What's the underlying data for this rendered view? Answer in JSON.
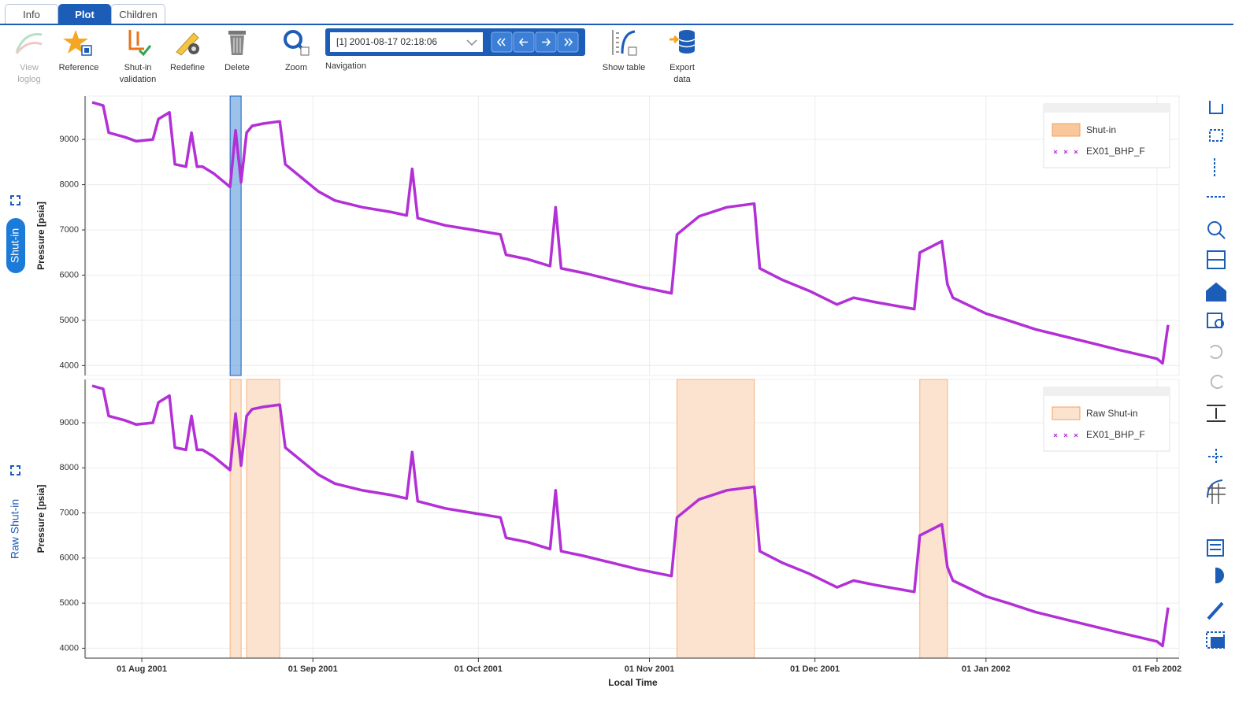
{
  "tabs": [
    "Info",
    "Plot",
    "Children"
  ],
  "toolbar": [
    "View loglog",
    "Reference",
    "Shut-in validation",
    "Redefine",
    "Delete",
    "Zoom"
  ],
  "navigation": {
    "label": "Navigation",
    "current": "[1] 2001-08-17 02:18:06"
  },
  "toolbar_right": [
    "Show table",
    "Export data"
  ],
  "chart_data": [
    {
      "type": "line",
      "title": "Shut-in",
      "y_label": "Pressure [psia]",
      "xlim": [
        "2001-07-22",
        "2002-02-05"
      ],
      "ylim": [
        3780,
        9960
      ],
      "yticks": [
        4000,
        5000,
        6000,
        7000,
        8000,
        9000
      ],
      "grid": true,
      "legend": "top-right",
      "shutin": {
        "name": "Shut-in",
        "color": "#4a90d9",
        "start": [
          "2001-08-17"
        ],
        "end": [
          "2001-08-19"
        ]
      },
      "x": [
        "2001-07-23",
        "2001-07-25",
        "2001-07-26",
        "2001-07-29",
        "2001-07-31",
        "2001-08-03",
        "2001-08-04",
        "2001-08-06",
        "2001-08-07",
        "2001-08-09",
        "2001-08-10",
        "2001-08-11",
        "2001-08-12",
        "2001-08-14",
        "2001-08-16",
        "2001-08-17",
        "2001-08-18",
        "2001-08-19",
        "2001-08-20",
        "2001-08-21",
        "2001-08-23",
        "2001-08-26",
        "2001-08-27",
        "2001-08-30",
        "2001-09-02",
        "2001-09-05",
        "2001-09-10",
        "2001-09-15",
        "2001-09-18",
        "2001-09-19",
        "2001-09-20",
        "2001-09-25",
        "2001-09-30",
        "2001-10-05",
        "2001-10-06",
        "2001-10-10",
        "2001-10-14",
        "2001-10-15",
        "2001-10-16",
        "2001-10-20",
        "2001-10-25",
        "2001-10-30",
        "2001-11-05",
        "2001-11-06",
        "2001-11-10",
        "2001-11-15",
        "2001-11-20",
        "2001-11-21",
        "2001-11-25",
        "2001-11-30",
        "2001-12-05",
        "2001-12-08",
        "2001-12-12",
        "2001-12-19",
        "2001-12-20",
        "2001-12-24",
        "2001-12-25",
        "2001-12-26",
        "2002-01-01",
        "2002-01-05",
        "2002-01-10",
        "2002-01-15",
        "2002-01-20",
        "2002-01-25",
        "2002-02-01",
        "2002-02-02",
        "2002-02-03"
      ],
      "series": [
        {
          "name": "EX01_BHP_F",
          "color": "#b32fd6",
          "values": [
            9820,
            9750,
            9150,
            9050,
            8960,
            9000,
            9450,
            9600,
            8450,
            8400,
            9150,
            8400,
            8400,
            8250,
            8050,
            7950,
            9200,
            8050,
            9150,
            9300,
            9350,
            9400,
            8450,
            8150,
            7850,
            7650,
            7500,
            7400,
            7320,
            8350,
            7260,
            7100,
            7000,
            6900,
            6450,
            6350,
            6200,
            7500,
            6150,
            6050,
            5900,
            5750,
            5600,
            6900,
            7300,
            7500,
            7580,
            6150,
            5900,
            5650,
            5350,
            5500,
            5400,
            5250,
            6500,
            6750,
            5800,
            5500,
            5150,
            5000,
            4800,
            4650,
            4500,
            4350,
            4150,
            4050,
            4900
          ]
        }
      ]
    },
    {
      "type": "line",
      "title": "Raw Shut-in",
      "y_label": "Pressure [psia]",
      "x_label": "Local Time",
      "xlim": [
        "2001-07-22",
        "2002-02-05"
      ],
      "ylim": [
        3780,
        9960
      ],
      "yticks": [
        4000,
        5000,
        6000,
        7000,
        8000,
        9000
      ],
      "grid": true,
      "legend": "top-right",
      "xticks": [
        {
          "value": "2001-08-01",
          "label": "01 Aug 2001"
        },
        {
          "value": "2001-09-01",
          "label": "01 Sep 2001"
        },
        {
          "value": "2001-10-01",
          "label": "01 Oct 2001"
        },
        {
          "value": "2001-11-01",
          "label": "01 Nov 2001"
        },
        {
          "value": "2001-12-01",
          "label": "01 Dec 2001"
        },
        {
          "value": "2002-01-01",
          "label": "01 Jan 2002"
        },
        {
          "value": "2002-02-01",
          "label": "01 Feb 2002"
        }
      ],
      "shutin": {
        "name": "Raw Shut-in",
        "color": "#fbe3cf",
        "start": [
          "2001-08-17",
          "2001-08-20",
          "2001-11-06",
          "2001-12-20"
        ],
        "end": [
          "2001-08-19",
          "2001-08-26",
          "2001-11-20",
          "2001-12-25"
        ]
      },
      "x": [
        "2001-07-23",
        "2001-07-25",
        "2001-07-26",
        "2001-07-29",
        "2001-07-31",
        "2001-08-03",
        "2001-08-04",
        "2001-08-06",
        "2001-08-07",
        "2001-08-09",
        "2001-08-10",
        "2001-08-11",
        "2001-08-12",
        "2001-08-14",
        "2001-08-16",
        "2001-08-17",
        "2001-08-18",
        "2001-08-19",
        "2001-08-20",
        "2001-08-21",
        "2001-08-23",
        "2001-08-26",
        "2001-08-27",
        "2001-08-30",
        "2001-09-02",
        "2001-09-05",
        "2001-09-10",
        "2001-09-15",
        "2001-09-18",
        "2001-09-19",
        "2001-09-20",
        "2001-09-25",
        "2001-09-30",
        "2001-10-05",
        "2001-10-06",
        "2001-10-10",
        "2001-10-14",
        "2001-10-15",
        "2001-10-16",
        "2001-10-20",
        "2001-10-25",
        "2001-10-30",
        "2001-11-05",
        "2001-11-06",
        "2001-11-10",
        "2001-11-15",
        "2001-11-20",
        "2001-11-21",
        "2001-11-25",
        "2001-11-30",
        "2001-12-05",
        "2001-12-08",
        "2001-12-12",
        "2001-12-19",
        "2001-12-20",
        "2001-12-24",
        "2001-12-25",
        "2001-12-26",
        "2002-01-01",
        "2002-01-05",
        "2002-01-10",
        "2002-01-15",
        "2002-01-20",
        "2002-01-25",
        "2002-02-01",
        "2002-02-02",
        "2002-02-03"
      ],
      "series": [
        {
          "name": "EX01_BHP_F",
          "color": "#b32fd6",
          "values": [
            9820,
            9750,
            9150,
            9050,
            8960,
            9000,
            9450,
            9600,
            8450,
            8400,
            9150,
            8400,
            8400,
            8250,
            8050,
            7950,
            9200,
            8050,
            9150,
            9300,
            9350,
            9400,
            8450,
            8150,
            7850,
            7650,
            7500,
            7400,
            7320,
            8350,
            7260,
            7100,
            7000,
            6900,
            6450,
            6350,
            6200,
            7500,
            6150,
            6050,
            5900,
            5750,
            5600,
            6900,
            7300,
            7500,
            7580,
            6150,
            5900,
            5650,
            5350,
            5500,
            5400,
            5250,
            6500,
            6750,
            5800,
            5500,
            5150,
            5000,
            4800,
            4650,
            4500,
            4350,
            4150,
            4050,
            4900
          ]
        }
      ]
    }
  ]
}
